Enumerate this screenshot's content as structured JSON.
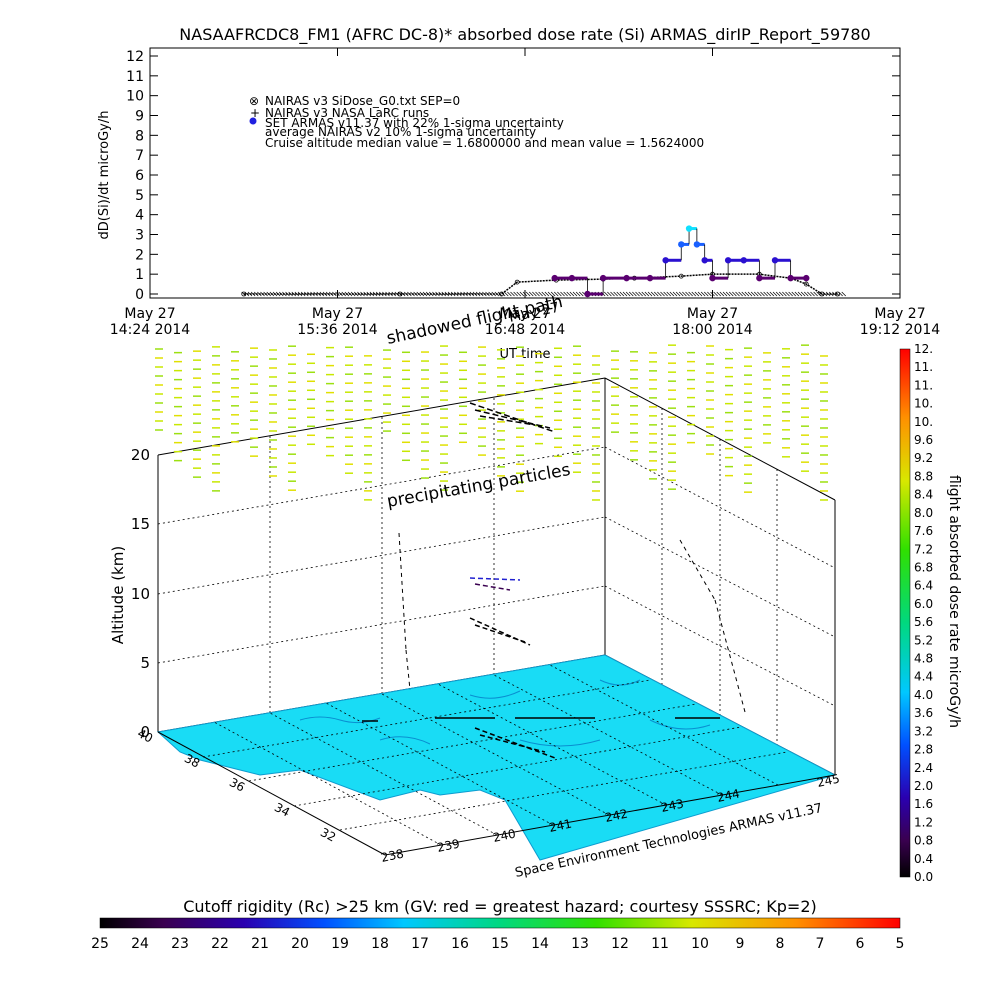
{
  "title": "NASAAFRCDC8_FM1 (AFRC DC-8)* absorbed dose rate (Si) ARMAS_dirIP_Report_59780",
  "top_plot": {
    "ylabel": "dD(Si)/dt microGy/h",
    "xlabel": "UT time",
    "yticks": [
      "0",
      "1",
      "2",
      "3",
      "4",
      "5",
      "6",
      "7",
      "8",
      "9",
      "10",
      "11",
      "12"
    ],
    "xticks": [
      {
        "line1": "May 27",
        "line2": "14:24 2014"
      },
      {
        "line1": "May 27",
        "line2": "15:36 2014"
      },
      {
        "line1": "May 27",
        "line2": "16:48 2014"
      },
      {
        "line1": "May 27",
        "line2": "18:00 2014"
      },
      {
        "line1": "May 27",
        "line2": "19:12 2014"
      }
    ],
    "legend": [
      {
        "symbol": "⊗",
        "text": "NAIRAS v3 SiDose_G0.txt SEP=0"
      },
      {
        "symbol": "+",
        "text": "NAIRAS v3 NASA LaRC runs"
      },
      {
        "symbol": "●",
        "text": "SET ARMAS v11.37 with 22% 1-sigma uncertainty"
      },
      {
        "symbol": "",
        "text": "average NAIRAS v2 10% 1-sigma uncertainty"
      },
      {
        "symbol": "",
        "text": "Cruise altitude median value = 1.6800000 and mean value = 1.5624000"
      }
    ],
    "overlay_texts": [
      "shadowed flight path",
      "May 27"
    ]
  },
  "chart_data": {
    "type": "line",
    "title": "NASAAFRCDC8_FM1 (AFRC DC-8)* absorbed dose rate (Si) ARMAS_dirIP_Report_59780",
    "xlabel": "UT time",
    "ylabel": "dD(Si)/dt microGy/h",
    "ylim": [
      0,
      12
    ],
    "xlim_hours": [
      14.4,
      19.2
    ],
    "series": [
      {
        "name": "NAIRAS v3 SiDose_G0.txt SEP=0",
        "x_hours": [
          15.0,
          16.0,
          16.65,
          16.75,
          17.0,
          17.3,
          17.5,
          17.8,
          18.0,
          18.3,
          18.5,
          18.6,
          18.7,
          18.8
        ],
        "values": [
          0.0,
          0.0,
          0.0,
          0.6,
          0.7,
          0.75,
          0.8,
          0.9,
          1.0,
          1.0,
          0.8,
          0.5,
          0.0,
          0.0
        ]
      },
      {
        "name": "SET ARMAS v11.37 with 22% 1-sigma uncertainty",
        "x_hours": [
          16.99,
          17.1,
          17.2,
          17.3,
          17.45,
          17.6,
          17.7,
          17.8,
          17.85,
          17.9,
          17.95,
          18.0,
          18.1,
          18.2,
          18.3,
          18.4,
          18.5,
          18.6
        ],
        "values": [
          0.8,
          0.8,
          0.0,
          0.8,
          0.8,
          0.8,
          1.7,
          2.5,
          3.3,
          2.5,
          1.7,
          0.8,
          1.7,
          1.7,
          0.8,
          1.7,
          0.8,
          0.8
        ]
      }
    ],
    "colorbar_right": {
      "label": "flight absorbed dose rate microGy/h",
      "range": [
        0.0,
        12.0
      ],
      "tick_labels": [
        "0.0",
        "0.4",
        "0.8",
        "1.2",
        "1.6",
        "2.0",
        "2.4",
        "2.8",
        "3.2",
        "3.6",
        "4.0",
        "4.4",
        "4.8",
        "5.2",
        "5.6",
        "6.0",
        "6.4",
        "6.8",
        "7.2",
        "7.6",
        "8.0",
        "8.4",
        "8.8",
        "9.2",
        "9.6",
        "10.",
        "10.",
        "11.",
        "11.",
        "12."
      ]
    },
    "colorbar_bottom": {
      "label": "Cutoff rigidity (Rc) >25 km (GV: red = greatest hazard; courtesy SSSRC; Kp=2)",
      "tick_labels": [
        "25",
        "24",
        "23",
        "22",
        "21",
        "20",
        "19",
        "18",
        "17",
        "16",
        "15",
        "14",
        "13",
        "12",
        "11",
        "10",
        "9",
        "8",
        "7",
        "6",
        "5"
      ]
    },
    "plot3d": {
      "zlabel": "Altitude (km)",
      "zticks": [
        "0",
        "5",
        "10",
        "15",
        "20"
      ],
      "lat_ticks": [
        "40",
        "38",
        "36",
        "34",
        "32"
      ],
      "lon_ticks": [
        "238",
        "239",
        "240",
        "241",
        "242",
        "243",
        "244",
        "245"
      ],
      "annotations": [
        "precipitating particles",
        "Space Environment Technologies ARMAS v11.37"
      ]
    }
  }
}
